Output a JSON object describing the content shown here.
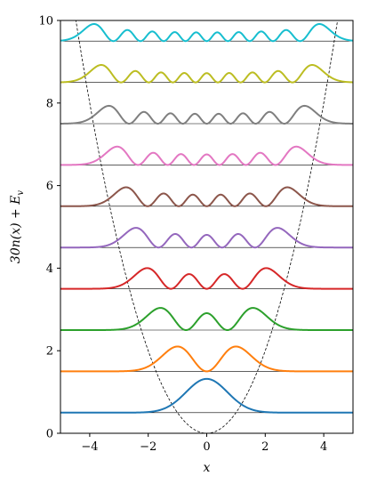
{
  "chart_data": {
    "type": "line",
    "title": "",
    "xlabel": "x",
    "ylabel": "30n(x) + E_v",
    "ylabel_parts": {
      "main": "30n(x) + E",
      "sub": "v"
    },
    "xlim": [
      -5,
      5
    ],
    "ylim": [
      0,
      10
    ],
    "xticks": [
      -4,
      -2,
      0,
      2,
      4
    ],
    "yticks": [
      0,
      2,
      4,
      6,
      8,
      10
    ],
    "grid": false,
    "legend": "none",
    "potential": {
      "name": "",
      "formula": "x^2/2",
      "style": "dashed",
      "color": "#000000"
    },
    "scale_factor": 30,
    "energy_levels": [
      0.5,
      1.5,
      2.5,
      3.5,
      4.5,
      5.5,
      6.5,
      7.5,
      8.5,
      9.5
    ],
    "series": [
      {
        "n": 0,
        "energy": 0.5,
        "color": "#1f77b4"
      },
      {
        "n": 1,
        "energy": 1.5,
        "color": "#ff7f0e"
      },
      {
        "n": 2,
        "energy": 2.5,
        "color": "#2ca02c"
      },
      {
        "n": 3,
        "energy": 3.5,
        "color": "#d62728"
      },
      {
        "n": 4,
        "energy": 4.5,
        "color": "#9467bd"
      },
      {
        "n": 5,
        "energy": 5.5,
        "color": "#8c564b"
      },
      {
        "n": 6,
        "energy": 6.5,
        "color": "#e377c2"
      },
      {
        "n": 7,
        "energy": 7.5,
        "color": "#7f7f7f"
      },
      {
        "n": 8,
        "energy": 8.5,
        "color": "#bcbd22"
      },
      {
        "n": 9,
        "energy": 9.5,
        "color": "#17becf"
      }
    ]
  }
}
